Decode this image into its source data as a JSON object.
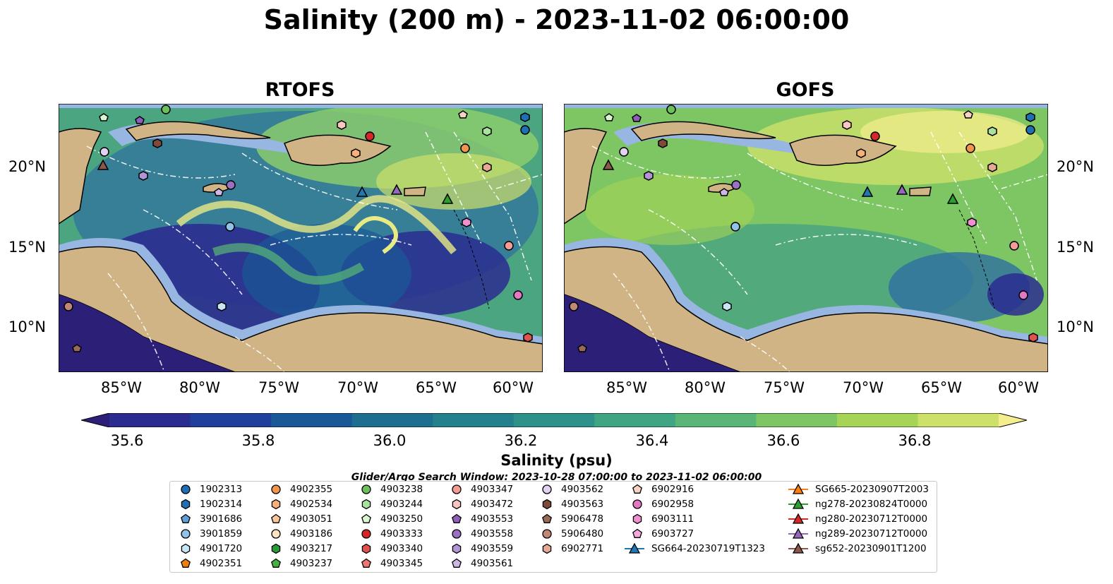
{
  "title": "Salinity (200 m) - 2023-11-02 06:00:00",
  "panels": [
    {
      "title": "RTOFS"
    },
    {
      "title": "GOFS"
    }
  ],
  "x_ticks": [
    "85°W",
    "80°W",
    "75°W",
    "70°W",
    "65°W",
    "60°W"
  ],
  "y_ticks": [
    "20°N",
    "15°N",
    "10°N"
  ],
  "colorbar": {
    "label": "Salinity (psu)",
    "ticks": [
      "35.6",
      "35.8",
      "36.0",
      "36.2",
      "36.4",
      "36.6",
      "36.8"
    ],
    "colors": [
      "#2b1f78",
      "#2a2d8f",
      "#21409e",
      "#1a5896",
      "#1e6e8f",
      "#24808c",
      "#2f928a",
      "#3fa583",
      "#5ab676",
      "#7ec563",
      "#a5d457",
      "#cde06a",
      "#f5ee8f"
    ]
  },
  "search_window": "Glider/Argo Search Window: 2023-10-28 07:00:00 to 2023-11-02 06:00:00",
  "legend": [
    {
      "label": "1902313",
      "marker": "circle",
      "color": "#1f6fb4"
    },
    {
      "label": "1902314",
      "marker": "hexagon",
      "color": "#1f6fb4"
    },
    {
      "label": "3901686",
      "marker": "pentagon",
      "color": "#5e9fd6"
    },
    {
      "label": "3901859",
      "marker": "circle",
      "color": "#8fc3ea"
    },
    {
      "label": "4901720",
      "marker": "hexagon",
      "color": "#c9e6f5"
    },
    {
      "label": "4902351",
      "marker": "pentagon",
      "color": "#f07e12"
    },
    {
      "label": "4902355",
      "marker": "circle",
      "color": "#f2954a"
    },
    {
      "label": "4902534",
      "marker": "hexagon",
      "color": "#f7b07a"
    },
    {
      "label": "4903051",
      "marker": "pentagon",
      "color": "#f7c79a"
    },
    {
      "label": "4903186",
      "marker": "circle",
      "color": "#fde3c4"
    },
    {
      "label": "4903217",
      "marker": "hexagon",
      "color": "#2a9a35"
    },
    {
      "label": "4903237",
      "marker": "pentagon",
      "color": "#45b23f"
    },
    {
      "label": "4903238",
      "marker": "circle",
      "color": "#6cc05d"
    },
    {
      "label": "4903244",
      "marker": "hexagon",
      "color": "#a9e2a0"
    },
    {
      "label": "4903250",
      "marker": "pentagon",
      "color": "#d9f7cf"
    },
    {
      "label": "4903333",
      "marker": "circle",
      "color": "#d62728"
    },
    {
      "label": "4903340",
      "marker": "hexagon",
      "color": "#e0524c"
    },
    {
      "label": "4903345",
      "marker": "pentagon",
      "color": "#ee7570"
    },
    {
      "label": "4903347",
      "marker": "circle",
      "color": "#f59b96"
    },
    {
      "label": "4903472",
      "marker": "hexagon",
      "color": "#fbc6c2"
    },
    {
      "label": "4903553",
      "marker": "pentagon",
      "color": "#8e5fb8"
    },
    {
      "label": "4903558",
      "marker": "circle",
      "color": "#9a6fc4"
    },
    {
      "label": "4903559",
      "marker": "hexagon",
      "color": "#b295d6"
    },
    {
      "label": "4903561",
      "marker": "pentagon",
      "color": "#cdb7e6"
    },
    {
      "label": "4903562",
      "marker": "circle",
      "color": "#e2d2f2"
    },
    {
      "label": "4903563",
      "marker": "hexagon",
      "color": "#7d4a3b"
    },
    {
      "label": "5906478",
      "marker": "pentagon",
      "color": "#9a6a58"
    },
    {
      "label": "5906480",
      "marker": "circle",
      "color": "#c08774"
    },
    {
      "label": "6902771",
      "marker": "hexagon",
      "color": "#e7a994"
    },
    {
      "label": "6902916",
      "marker": "pentagon",
      "color": "#f8d3c2"
    },
    {
      "label": "6902958",
      "marker": "circle",
      "color": "#e377c2"
    },
    {
      "label": "6903111",
      "marker": "hexagon",
      "color": "#ee8fcf"
    },
    {
      "label": "6903727",
      "marker": "pentagon",
      "color": "#f5a8dc"
    },
    {
      "label": "SG664-20230719T1323",
      "marker": "triangle",
      "color": "#1f77b4"
    },
    {
      "label": "SG665-20230907T2003",
      "marker": "triangle",
      "color": "#ff7f0e"
    },
    {
      "label": "ng278-20230824T0000",
      "marker": "triangle",
      "color": "#2ca02c"
    },
    {
      "label": "ng280-20230712T0000",
      "marker": "triangle",
      "color": "#d62728"
    },
    {
      "label": "ng289-20230712T0000",
      "marker": "triangle",
      "color": "#9467bd"
    },
    {
      "label": "sg652-20230901T1200",
      "marker": "triangle",
      "color": "#8c564b"
    }
  ],
  "colors": {
    "land": "#d1b486",
    "shelf": "#97b6e2",
    "border": "#000000",
    "track": "#ffffff"
  }
}
